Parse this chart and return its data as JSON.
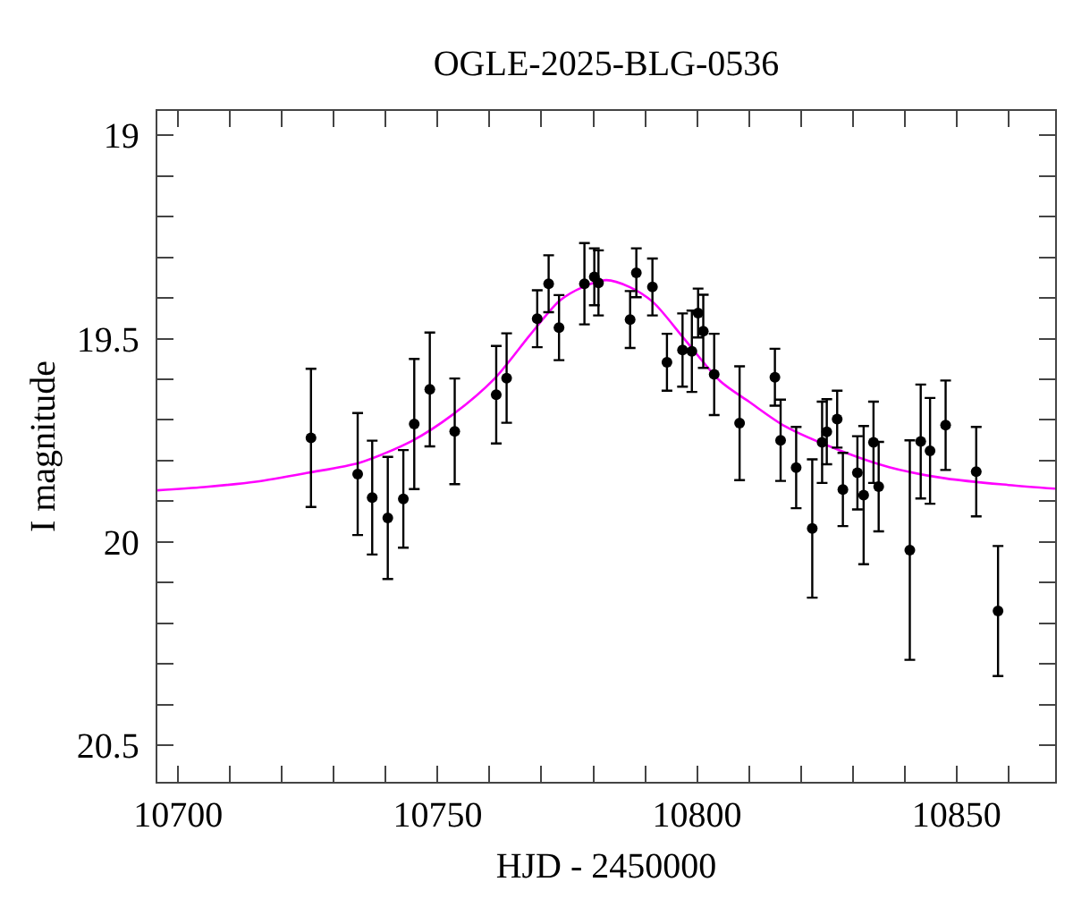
{
  "chart_data": {
    "type": "scatter",
    "title": "OGLE-2025-BLG-0536",
    "xlabel": "HJD - 2450000",
    "ylabel": "I magnitude",
    "xlim": [
      10696,
      10869
    ],
    "ylim": [
      20.59,
      18.94
    ],
    "xticks": [
      10700,
      10750,
      10800,
      10850,
      {
        "value": 10710,
        "label": null
      },
      {
        "value": 10720,
        "label": null
      },
      {
        "value": 10730,
        "label": null
      },
      {
        "value": 10740,
        "label": null
      },
      {
        "value": 10760,
        "label": null
      },
      {
        "value": 10770,
        "label": null
      },
      {
        "value": 10780,
        "label": null
      },
      {
        "value": 10790,
        "label": null
      },
      {
        "value": 10810,
        "label": null
      },
      {
        "value": 10820,
        "label": null
      },
      {
        "value": 10830,
        "label": null
      },
      {
        "value": 10840,
        "label": null
      },
      {
        "value": 10860,
        "label": null
      }
    ],
    "yticks": [
      19,
      19.5,
      20,
      20.5,
      {
        "value": 19.1,
        "label": null
      },
      {
        "value": 19.2,
        "label": null
      },
      {
        "value": 19.3,
        "label": null
      },
      {
        "value": 19.4,
        "label": null
      },
      {
        "value": 19.6,
        "label": null
      },
      {
        "value": 19.7,
        "label": null
      },
      {
        "value": 19.8,
        "label": null
      },
      {
        "value": 19.9,
        "label": null
      },
      {
        "value": 20.1,
        "label": null
      },
      {
        "value": 20.2,
        "label": null
      },
      {
        "value": 20.3,
        "label": null
      },
      {
        "value": 20.4,
        "label": null
      }
    ],
    "marker": "circle",
    "series": [
      {
        "type": "line",
        "marker": "none",
        "color": "#ff00ff",
        "x": [
          10696,
          10705,
          10715,
          10725,
          10735,
          10745,
          10753,
          10761,
          10768,
          10773.5,
          10778,
          10782.5,
          10787,
          10791.5,
          10797.5,
          10804.5,
          10810,
          10817,
          10827.5,
          10837,
          10848,
          10860,
          10869
        ],
        "values": [
          19.873,
          19.865,
          19.852,
          19.83,
          19.805,
          19.752,
          19.686,
          19.598,
          19.488,
          19.407,
          19.373,
          19.356,
          19.373,
          19.41,
          19.5,
          19.605,
          19.655,
          19.716,
          19.775,
          19.816,
          19.844,
          19.86,
          19.869
        ]
      },
      {
        "color": "#000000",
        "x": [
          10725.6,
          10734.6,
          10737.4,
          10740.4,
          10743.4,
          10745.5,
          10748.5,
          10753.3,
          10761.3,
          10763.3,
          10769.2,
          10771.4,
          10773.4,
          10778.3,
          10780.2,
          10781.0,
          10787.1,
          10788.3,
          10791.4,
          10794.2,
          10797.2,
          10799.0,
          10800.2,
          10801.2,
          10803.3,
          10808.2,
          10815.0,
          10816.1,
          10819.1,
          10822.2,
          10824.1,
          10825.0,
          10827.0,
          10828.1,
          10830.9,
          10832.1,
          10834.0,
          10835.0,
          10841.0,
          10843.1,
          10844.9,
          10847.9,
          10853.8,
          10858.0
        ],
        "values": [
          19.744,
          19.833,
          19.891,
          19.941,
          19.894,
          19.71,
          19.625,
          19.728,
          19.638,
          19.597,
          19.451,
          19.365,
          19.473,
          19.365,
          19.348,
          19.363,
          19.453,
          19.338,
          19.373,
          19.558,
          19.528,
          19.531,
          19.437,
          19.482,
          19.588,
          19.708,
          19.595,
          19.75,
          19.817,
          19.967,
          19.755,
          19.729,
          19.698,
          19.871,
          19.83,
          19.885,
          19.755,
          19.864,
          20.02,
          19.753,
          19.776,
          19.713,
          19.827,
          20.17
        ],
        "errors": [
          0.17,
          0.15,
          0.14,
          0.15,
          0.12,
          0.16,
          0.14,
          0.13,
          0.12,
          0.11,
          0.07,
          0.07,
          0.08,
          0.1,
          0.07,
          0.08,
          0.07,
          0.06,
          0.07,
          0.07,
          0.09,
          0.1,
          0.06,
          0.09,
          0.1,
          0.14,
          0.07,
          0.1,
          0.1,
          0.17,
          0.1,
          0.08,
          0.07,
          0.09,
          0.09,
          0.17,
          0.1,
          0.11,
          0.27,
          0.14,
          0.13,
          0.11,
          0.11,
          0.16
        ]
      }
    ]
  }
}
